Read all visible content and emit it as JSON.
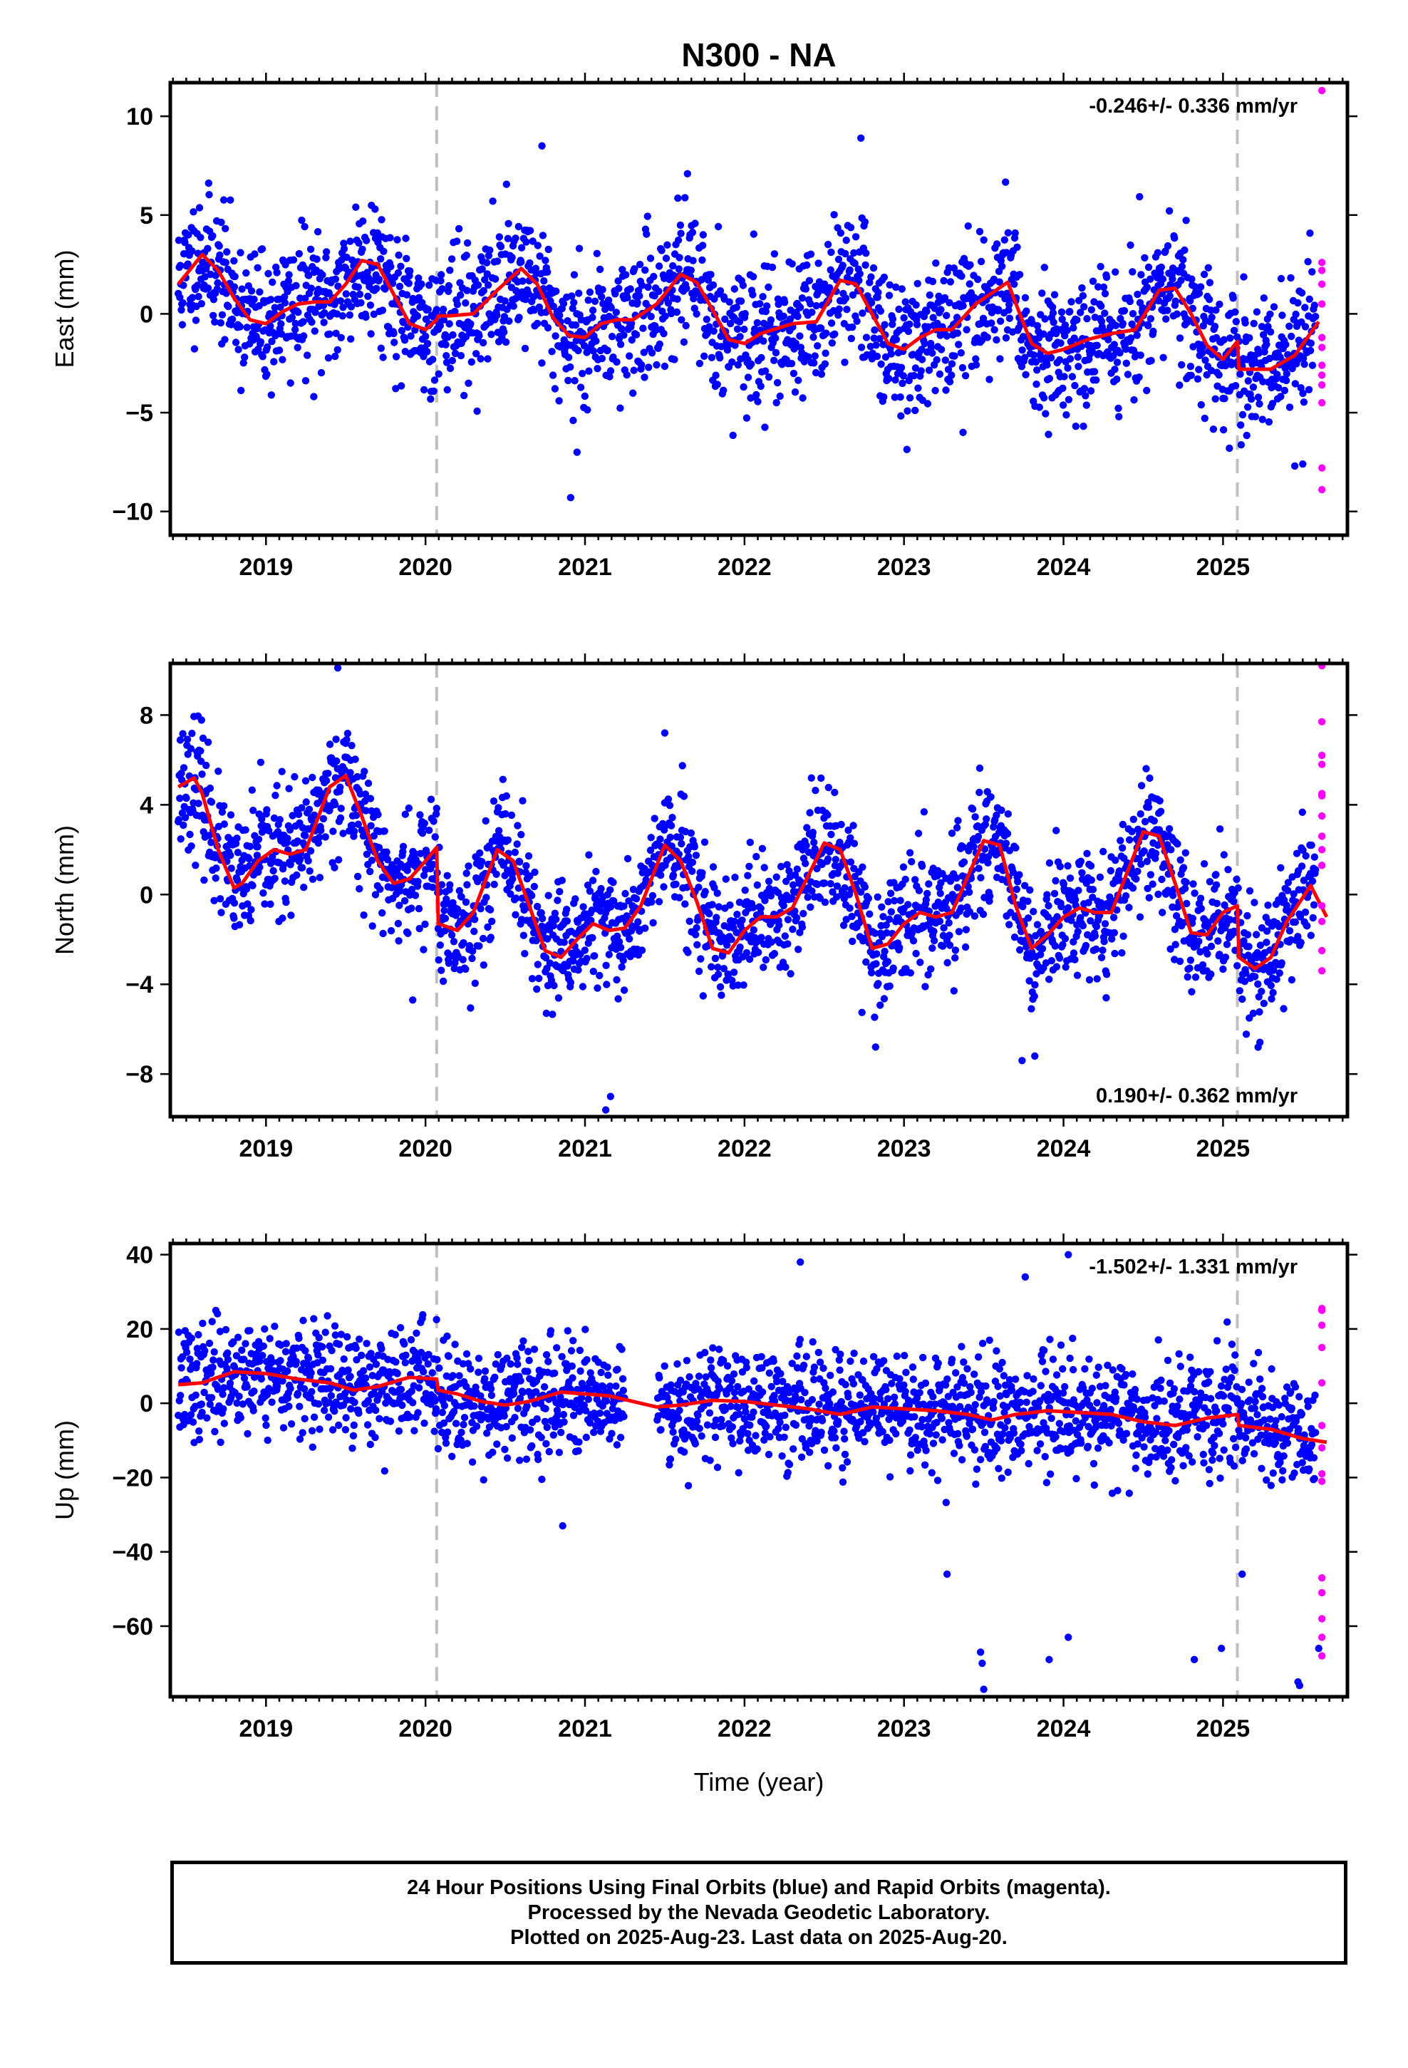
{
  "title": "N300 - NA",
  "xlabel": "Time (year)",
  "colors": {
    "final": "#0000ff",
    "rapid": "#ff00ff",
    "model": "#ff0000",
    "break": "#c0c0c0"
  },
  "footer": [
    "24 Hour Positions Using Final Orbits (blue) and Rapid Orbits (magenta).",
    "Processed by the Nevada Geodetic Laboratory.",
    "Plotted on 2025-Aug-23. Last data on 2025-Aug-20."
  ],
  "chart_data": [
    {
      "type": "scatter",
      "component": "East",
      "ylabel": "East (mm)",
      "rate_label": "-0.246+/- 0.336 mm/yr",
      "rate_position": "top-right",
      "xlim": [
        2018.4,
        2025.78
      ],
      "ylim": [
        -11.2,
        11.7
      ],
      "yticks": [
        10,
        5,
        0,
        -5,
        -10
      ],
      "xticks": [
        2019,
        2020,
        2021,
        2022,
        2023,
        2024,
        2025
      ],
      "equipment_breaks": [
        2020.07,
        2025.09
      ],
      "model": {
        "x": [
          2018.45,
          2018.55,
          2018.6,
          2018.7,
          2018.8,
          2018.9,
          2019.0,
          2019.1,
          2019.2,
          2019.3,
          2019.4,
          2019.5,
          2019.6,
          2019.7,
          2019.8,
          2019.9,
          2020.0,
          2020.07,
          2020.08,
          2020.15,
          2020.3,
          2020.45,
          2020.6,
          2020.7,
          2020.8,
          2020.9,
          2021.0,
          2021.1,
          2021.2,
          2021.3,
          2021.45,
          2021.6,
          2021.7,
          2021.8,
          2021.9,
          2022.0,
          2022.1,
          2022.3,
          2022.45,
          2022.6,
          2022.7,
          2022.8,
          2022.9,
          2023.0,
          2023.1,
          2023.2,
          2023.3,
          2023.45,
          2023.65,
          2023.75,
          2023.8,
          2023.9,
          2024.0,
          2024.15,
          2024.3,
          2024.45,
          2024.6,
          2024.7,
          2024.8,
          2024.9,
          2025.0,
          2025.09,
          2025.1,
          2025.2,
          2025.3,
          2025.45,
          2025.6
        ],
        "y": [
          1.5,
          2.5,
          3.0,
          2.2,
          0.8,
          -0.3,
          -0.5,
          0.1,
          0.5,
          0.6,
          0.6,
          1.5,
          2.7,
          2.5,
          1.0,
          -0.5,
          -0.8,
          -0.3,
          -0.1,
          -0.1,
          0.0,
          1.2,
          2.3,
          1.5,
          -0.2,
          -1.1,
          -1.2,
          -0.5,
          -0.3,
          -0.3,
          0.5,
          2.0,
          1.6,
          0.2,
          -1.3,
          -1.5,
          -1.0,
          -0.5,
          -0.4,
          1.7,
          1.5,
          0.0,
          -1.5,
          -1.8,
          -1.2,
          -0.8,
          -0.8,
          0.5,
          1.6,
          -0.5,
          -1.5,
          -2.0,
          -1.8,
          -1.3,
          -1.0,
          -0.8,
          1.2,
          1.3,
          0.0,
          -1.6,
          -2.3,
          -1.4,
          -2.8,
          -2.8,
          -2.8,
          -2.1,
          -0.4
        ]
      },
      "rapid": {
        "x": [
          2025.62,
          2025.62,
          2025.62,
          2025.62,
          2025.62,
          2025.62,
          2025.62,
          2025.62,
          2025.62,
          2025.62,
          2025.62,
          2025.62,
          2025.62
        ],
        "y": [
          11.3,
          2.6,
          2.2,
          1.5,
          0.5,
          -1.2,
          -1.7,
          -2.6,
          -3.1,
          -3.6,
          -4.5,
          -7.8,
          -8.9
        ]
      },
      "scatter": {
        "seed": 11,
        "n": 2250,
        "noise_sd": 1.7,
        "gaps": [],
        "outliers": [
          {
            "x": 2020.73,
            "y": 8.5
          },
          {
            "x": 2020.91,
            "y": -9.3
          },
          {
            "x": 2020.95,
            "y": -7.0
          },
          {
            "x": 2023.37,
            "y": -6.0
          },
          {
            "x": 2025.04,
            "y": -6.8
          },
          {
            "x": 2025.45,
            "y": -7.7
          },
          {
            "x": 2025.5,
            "y": -7.6
          }
        ]
      }
    },
    {
      "type": "scatter",
      "component": "North",
      "ylabel": "North (mm)",
      "rate_label": "0.190+/- 0.362 mm/yr",
      "rate_position": "bottom-right",
      "xlim": [
        2018.4,
        2025.78
      ],
      "ylim": [
        -9.9,
        10.3
      ],
      "yticks": [
        8,
        4,
        0,
        -4,
        -8
      ],
      "xticks": [
        2019,
        2020,
        2021,
        2022,
        2023,
        2024,
        2025
      ],
      "equipment_breaks": [
        2020.07,
        2025.09
      ],
      "model": {
        "x": [
          2018.45,
          2018.55,
          2018.6,
          2018.7,
          2018.8,
          2018.85,
          2018.95,
          2019.05,
          2019.15,
          2019.25,
          2019.4,
          2019.5,
          2019.6,
          2019.7,
          2019.8,
          2019.9,
          2020.0,
          2020.07,
          2020.08,
          2020.2,
          2020.3,
          2020.45,
          2020.55,
          2020.65,
          2020.75,
          2020.85,
          2020.95,
          2021.05,
          2021.15,
          2021.25,
          2021.35,
          2021.5,
          2021.6,
          2021.7,
          2021.8,
          2021.9,
          2022.0,
          2022.1,
          2022.2,
          2022.3,
          2022.5,
          2022.6,
          2022.7,
          2022.8,
          2022.9,
          2023.0,
          2023.1,
          2023.2,
          2023.3,
          2023.5,
          2023.6,
          2023.7,
          2023.8,
          2023.9,
          2024.0,
          2024.1,
          2024.2,
          2024.3,
          2024.5,
          2024.6,
          2024.7,
          2024.8,
          2024.9,
          2025.0,
          2025.09,
          2025.1,
          2025.2,
          2025.3,
          2025.4,
          2025.55,
          2025.65
        ],
        "y": [
          4.8,
          5.2,
          4.5,
          2.0,
          0.3,
          0.5,
          1.5,
          2.0,
          1.8,
          2.0,
          4.8,
          5.3,
          3.5,
          1.5,
          0.5,
          0.7,
          1.5,
          2.1,
          -1.3,
          -1.6,
          -0.8,
          2.0,
          1.5,
          -0.5,
          -2.5,
          -2.8,
          -2.0,
          -1.3,
          -1.6,
          -1.5,
          -0.5,
          2.2,
          1.5,
          -0.3,
          -2.4,
          -2.6,
          -1.6,
          -1.0,
          -1.0,
          -0.6,
          2.3,
          2.0,
          0.0,
          -2.4,
          -2.2,
          -1.3,
          -0.8,
          -1.0,
          -0.8,
          2.4,
          2.2,
          -0.5,
          -2.4,
          -1.8,
          -1.0,
          -0.6,
          -0.8,
          -0.8,
          2.8,
          2.6,
          0.5,
          -1.7,
          -1.8,
          -0.8,
          -0.5,
          -2.8,
          -3.3,
          -2.8,
          -1.2,
          0.4,
          -1.0
        ]
      },
      "rapid": {
        "x": [
          2025.62,
          2025.62,
          2025.62,
          2025.62,
          2025.62,
          2025.62,
          2025.62,
          2025.62,
          2025.62,
          2025.62,
          2025.62,
          2025.62,
          2025.62,
          2025.62
        ],
        "y": [
          10.2,
          7.7,
          6.2,
          5.8,
          4.5,
          4.4,
          3.5,
          2.6,
          2.0,
          1.3,
          -0.5,
          -1.2,
          -2.5,
          -3.4
        ]
      },
      "scatter": {
        "seed": 23,
        "n": 2250,
        "noise_sd": 1.4,
        "gaps": [],
        "outliers": [
          {
            "x": 2019.45,
            "y": 10.1
          },
          {
            "x": 2019.92,
            "y": -4.7
          },
          {
            "x": 2021.13,
            "y": -9.6
          },
          {
            "x": 2021.16,
            "y": -9.0
          },
          {
            "x": 2021.5,
            "y": 7.2
          },
          {
            "x": 2023.74,
            "y": -7.4
          },
          {
            "x": 2023.82,
            "y": -7.2
          },
          {
            "x": 2025.22,
            "y": -6.8
          }
        ]
      }
    },
    {
      "type": "scatter",
      "component": "Up",
      "ylabel": "Up (mm)",
      "rate_label": "-1.502+/- 1.331 mm/yr",
      "rate_position": "top-right",
      "xlim": [
        2018.4,
        2025.78
      ],
      "ylim": [
        -79,
        43
      ],
      "yticks": [
        40,
        20,
        0,
        -20,
        -40,
        -60
      ],
      "xticks": [
        2019,
        2020,
        2021,
        2022,
        2023,
        2024,
        2025
      ],
      "equipment_breaks": [
        2020.07,
        2025.09
      ],
      "model": {
        "x": [
          2018.45,
          2018.6,
          2018.8,
          2019.0,
          2019.2,
          2019.4,
          2019.55,
          2019.7,
          2019.9,
          2020.07,
          2020.08,
          2020.2,
          2020.35,
          2020.5,
          2020.65,
          2020.85,
          2021.0,
          2021.15,
          2021.3,
          2021.45,
          2021.6,
          2021.8,
          2022.0,
          2022.2,
          2022.4,
          2022.6,
          2022.8,
          2023.0,
          2023.2,
          2023.4,
          2023.55,
          2023.7,
          2023.9,
          2024.1,
          2024.3,
          2024.5,
          2024.7,
          2024.9,
          2025.09,
          2025.1,
          2025.3,
          2025.5,
          2025.65
        ],
        "y": [
          5.0,
          5.5,
          8.5,
          8.0,
          6.5,
          5.5,
          3.5,
          4.5,
          7.0,
          6.5,
          3.5,
          2.5,
          0.5,
          -0.5,
          0.5,
          3.0,
          2.5,
          2.0,
          0.5,
          -1.0,
          -0.5,
          0.8,
          0.5,
          -0.5,
          -1.5,
          -3.0,
          -1.0,
          -1.5,
          -2.0,
          -3.0,
          -4.5,
          -3.0,
          -2.0,
          -2.5,
          -3.0,
          -5.0,
          -6.0,
          -4.0,
          -3.0,
          -6.0,
          -7.0,
          -9.5,
          -10.5
        ]
      },
      "rapid": {
        "x": [
          2025.62,
          2025.62,
          2025.62,
          2025.62,
          2025.62,
          2025.62,
          2025.62,
          2025.62,
          2025.62,
          2025.62,
          2025.62,
          2025.62,
          2025.62,
          2025.62
        ],
        "y": [
          25.5,
          25,
          21,
          15,
          5.5,
          -6,
          -12,
          -19,
          -21,
          -47,
          -51,
          -58,
          -63,
          -68
        ]
      },
      "scatter": {
        "seed": 37,
        "n": 2150,
        "noise_sd": 7.5,
        "gaps": [
          [
            2021.25,
            2021.45
          ]
        ],
        "outliers": [
          {
            "x": 2020.86,
            "y": -33
          },
          {
            "x": 2022.35,
            "y": 38
          },
          {
            "x": 2023.27,
            "y": -46
          },
          {
            "x": 2023.48,
            "y": -67
          },
          {
            "x": 2023.49,
            "y": -70
          },
          {
            "x": 2023.5,
            "y": -77
          },
          {
            "x": 2023.76,
            "y": 34
          },
          {
            "x": 2023.91,
            "y": -69
          },
          {
            "x": 2024.03,
            "y": -63
          },
          {
            "x": 2024.03,
            "y": 40
          },
          {
            "x": 2024.82,
            "y": -69
          },
          {
            "x": 2024.99,
            "y": -66
          },
          {
            "x": 2025.12,
            "y": -46
          },
          {
            "x": 2025.47,
            "y": -75
          },
          {
            "x": 2025.48,
            "y": -76
          },
          {
            "x": 2025.6,
            "y": -66
          }
        ]
      }
    }
  ]
}
